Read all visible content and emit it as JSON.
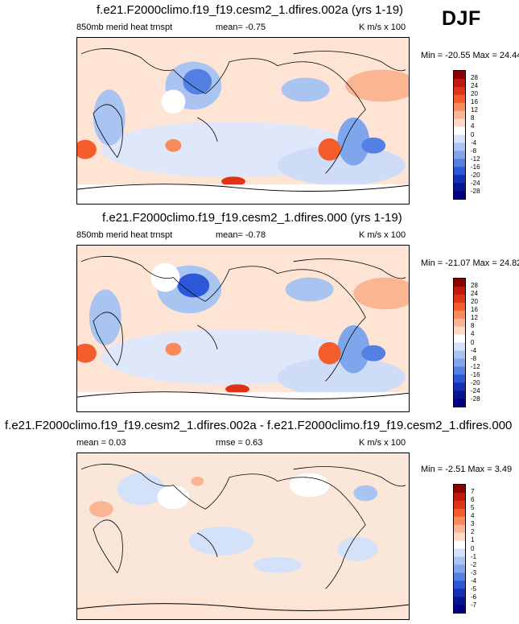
{
  "season": "DJF",
  "panels": [
    {
      "title": "f.e21.F2000climo.f19_f19.cesm2_1.dfires.002a (yrs 1-19)",
      "left": "850mb merid heat trnspt",
      "middle": "mean=  -0.75",
      "units": "K m/s x 100",
      "minmax": "Min = -20.55 Max =  24.44",
      "levels": [
        "28",
        "24",
        "20",
        "16",
        "12",
        "8",
        "4",
        "0",
        "-4",
        "-8",
        "-12",
        "-16",
        "-20",
        "-24",
        "-28"
      ]
    },
    {
      "title": "f.e21.F2000climo.f19_f19.cesm2_1.dfires.000 (yrs 1-19)",
      "left": "850mb merid heat trnspt",
      "middle": "mean=  -0.78",
      "units": "K m/s x 100",
      "minmax": "Min = -21.07 Max =  24.82",
      "levels": [
        "28",
        "24",
        "20",
        "16",
        "12",
        "8",
        "4",
        "0",
        "-4",
        "-8",
        "-12",
        "-16",
        "-20",
        "-24",
        "-28"
      ]
    },
    {
      "title": "f.e21.F2000climo.f19_f19.cesm2_1.dfires.002a - f.e21.F2000climo.f19_f19.cesm2_1.dfires.000",
      "left": "mean =  0.03",
      "middle": "rmse =  0.63",
      "units": "K m/s x 100",
      "minmax": "Min = -2.51 Max =  3.49",
      "levels": [
        "7",
        "6",
        "5",
        "4",
        "3",
        "2",
        "1",
        "0",
        "-1",
        "-2",
        "-3",
        "-4",
        "-5",
        "-6",
        "-7"
      ]
    }
  ],
  "colorscale": [
    "#8b0000",
    "#c0180c",
    "#e03216",
    "#f45c2c",
    "#f98a5a",
    "#fcb593",
    "#fdd9c4",
    "#ffffff",
    "#d3e2f8",
    "#a9c4f0",
    "#7fa5ec",
    "#5580e3",
    "#2c58d8",
    "#1530b6",
    "#06168f",
    "#000080"
  ],
  "icons": {
    "map": "world-map-contour-icon",
    "colorbar": "colorbar-icon"
  }
}
